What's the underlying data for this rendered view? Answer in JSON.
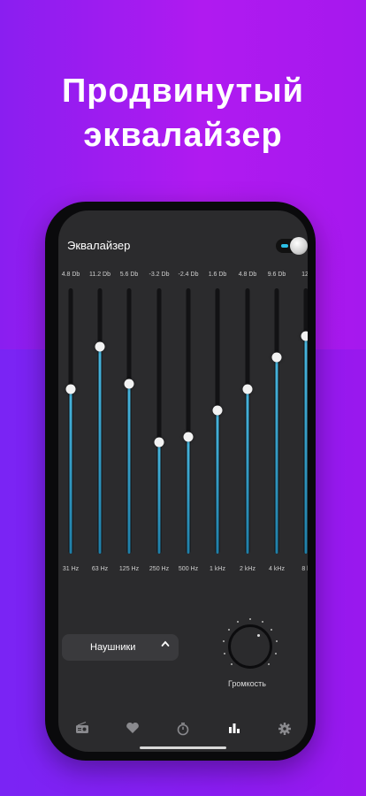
{
  "headline": {
    "line1": "Продвинутый",
    "line2": "эквалайзер"
  },
  "app": {
    "title": "Эквалайзер",
    "toggle_on": true,
    "accent_color": "#3ab0da"
  },
  "bands": [
    {
      "value": "4.8 Db",
      "freq": "31 Hz",
      "level": 0.62
    },
    {
      "value": "11.2 Db",
      "freq": "63 Hz",
      "level": 0.78
    },
    {
      "value": "5.6 Db",
      "freq": "125 Hz",
      "level": 0.64
    },
    {
      "value": "-3.2 Db",
      "freq": "250 Hz",
      "level": 0.42
    },
    {
      "value": "-2.4 Db",
      "freq": "500 Hz",
      "level": 0.44
    },
    {
      "value": "1.6 Db",
      "freq": "1 kHz",
      "level": 0.54
    },
    {
      "value": "4.8 Db",
      "freq": "2 kHz",
      "level": 0.62
    },
    {
      "value": "9.6 Db",
      "freq": "4 kHz",
      "level": 0.74
    },
    {
      "value": "12.",
      "freq": "8 k",
      "level": 0.82
    }
  ],
  "preset": {
    "label": "Наушники",
    "chevron_icon": "chevron-up-icon"
  },
  "volume": {
    "label": "Громкость"
  },
  "nav": [
    {
      "icon": "radio-icon",
      "active": false
    },
    {
      "icon": "heart-icon",
      "active": false
    },
    {
      "icon": "timer-icon",
      "active": false
    },
    {
      "icon": "equalizer-icon",
      "active": true
    },
    {
      "icon": "gear-icon",
      "active": false
    }
  ]
}
